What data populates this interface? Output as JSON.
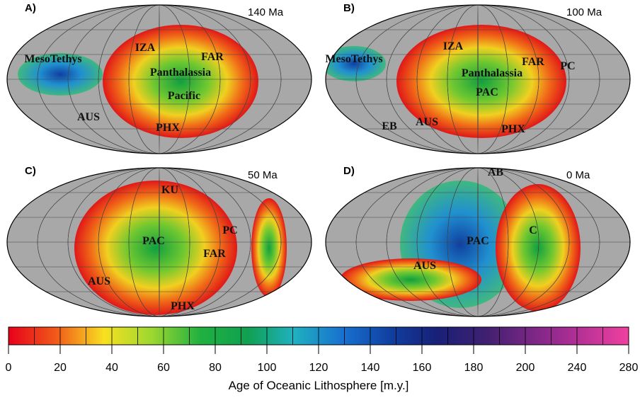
{
  "panels": [
    {
      "label": "A)",
      "age": "140 Ma",
      "regions": [
        "MesoTethys",
        "IZA",
        "FAR",
        "Panthalassia",
        "Pacific",
        "AUS",
        "PHX"
      ]
    },
    {
      "label": "B)",
      "age": "100 Ma",
      "regions": [
        "MesoTethys",
        "IZA",
        "FAR",
        "PC",
        "Panthalassia",
        "PAC",
        "EB",
        "AUS",
        "PHX"
      ]
    },
    {
      "label": "C)",
      "age": "50 Ma",
      "regions": [
        "KU",
        "PAC",
        "PC",
        "FAR",
        "AUS",
        "PHX"
      ]
    },
    {
      "label": "D)",
      "age": "0 Ma",
      "regions": [
        "AB",
        "PAC",
        "C",
        "AUS"
      ]
    }
  ],
  "colorbar": {
    "ticks": [
      0,
      20,
      40,
      60,
      80,
      100,
      120,
      140,
      160,
      180,
      200,
      240,
      280
    ],
    "title": "Age of Oceanic Lithosphere [m.y.]"
  }
}
